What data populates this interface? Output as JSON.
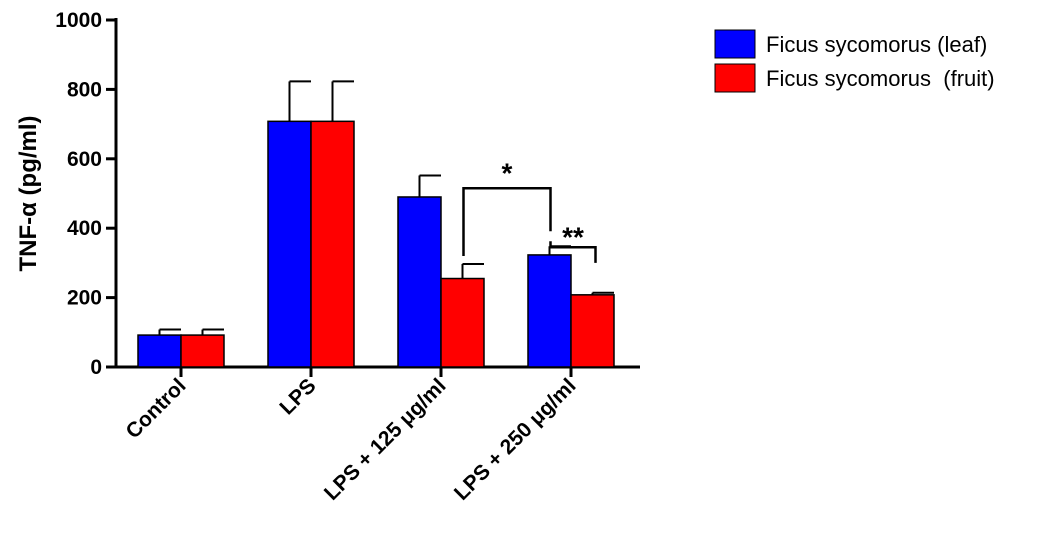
{
  "chart_data": {
    "type": "bar",
    "title": "",
    "xlabel": "",
    "ylabel": "TNF-α (pg/ml)",
    "ylim": [
      0,
      1000
    ],
    "yticks": [
      0,
      200,
      400,
      600,
      800,
      1000
    ],
    "categories": [
      "Control",
      "LPS",
      "LPS + 125 μg/ml",
      "LPS + 250 μg/ml"
    ],
    "series": [
      {
        "name": "Ficus sycomorus (leaf)",
        "color": "#0000ff",
        "values": [
          92,
          708,
          490,
          323
        ],
        "errors": [
          16,
          115,
          62,
          25
        ]
      },
      {
        "name": "Ficus sycomorus  (fruit)",
        "color": "#ff0000",
        "values": [
          92,
          708,
          255,
          208
        ],
        "errors": [
          16,
          115,
          42,
          6
        ]
      }
    ],
    "annotations": [
      {
        "label": "*",
        "from": "LPS + 125 μg/ml (fruit)",
        "to": "LPS + 250 μg/ml (leaf)"
      },
      {
        "label": "**",
        "from": "LPS + 250 μg/ml (leaf)",
        "to": "LPS + 250 μg/ml (fruit)"
      }
    ],
    "legend_position": "top-right",
    "grid": false
  }
}
